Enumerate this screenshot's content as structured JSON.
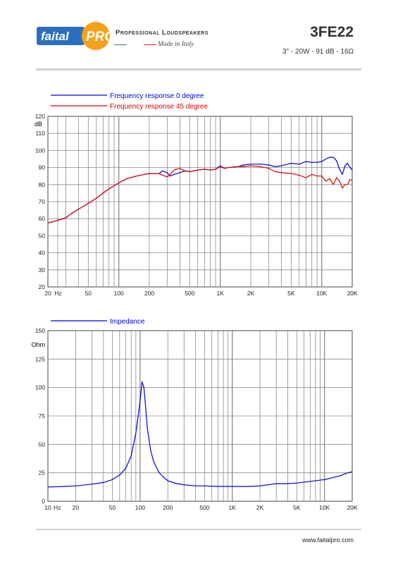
{
  "header": {
    "brand_logo": "faitalPRO",
    "tagline_professional": "Professional Loudspeakers",
    "tagline_made": "Made in Italy",
    "model": "3FE22",
    "spec": "3\" - 20W - 91 dB - 16Ω"
  },
  "footer": {
    "website": "www.faitalpro.com"
  },
  "colors": {
    "blue": "#0000dd",
    "red": "#dd0000",
    "grid": "#8a8a8a"
  },
  "chart_data": [
    {
      "type": "line",
      "title": "",
      "xscale": "log",
      "xlim": [
        20,
        20000
      ],
      "ylim": [
        20,
        120
      ],
      "ylabel": "dB",
      "grid": true,
      "legend_placement": "top-left",
      "x_tick_labels": [
        "20",
        "Hz",
        "50",
        "100",
        "200",
        "500",
        "1K",
        "2K",
        "5K",
        "10K",
        "20K"
      ],
      "y_tick_labels": [
        "120",
        "110",
        "100",
        "90",
        "80",
        "70",
        "60",
        "50",
        "40",
        "30",
        "20"
      ],
      "series": [
        {
          "name": "Frequency response 0 degree",
          "color": "#0000dd",
          "x": [
            20,
            25,
            30,
            35,
            40,
            50,
            60,
            70,
            80,
            100,
            120,
            150,
            180,
            200,
            250,
            270,
            300,
            320,
            350,
            400,
            450,
            500,
            600,
            700,
            800,
            900,
            1000,
            1100,
            1200,
            1500,
            1700,
            2000,
            2500,
            3000,
            3500,
            4000,
            5000,
            6000,
            7000,
            8000,
            9000,
            10000,
            11000,
            12000,
            13000,
            14000,
            15000,
            16000,
            17000,
            18000,
            19000,
            20000
          ],
          "y": [
            57.5,
            59,
            60.5,
            63.5,
            65.5,
            69,
            72,
            75,
            77.5,
            81,
            83.5,
            85,
            86,
            86.5,
            86.5,
            88,
            87,
            85,
            86,
            87,
            88,
            87.5,
            88.5,
            89,
            88.5,
            89,
            91,
            89.5,
            90,
            90.5,
            91.5,
            92,
            92,
            91.5,
            90.5,
            91,
            92.5,
            92,
            93.5,
            93,
            93,
            93.5,
            95,
            96,
            96,
            94,
            89,
            86,
            91,
            92.5,
            90,
            88.5
          ]
        },
        {
          "name": "Frequency response 45 degree",
          "color": "#dd0000",
          "x": [
            20,
            25,
            30,
            35,
            40,
            50,
            60,
            70,
            80,
            100,
            120,
            150,
            180,
            200,
            250,
            270,
            300,
            320,
            350,
            400,
            450,
            500,
            600,
            700,
            800,
            900,
            1000,
            1100,
            1200,
            1500,
            1700,
            2000,
            2500,
            3000,
            3500,
            4000,
            5000,
            6000,
            7000,
            8000,
            9000,
            10000,
            11000,
            12000,
            13000,
            14000,
            15000,
            16000,
            17000,
            18000,
            19000,
            20000
          ],
          "y": [
            57.5,
            59,
            60.5,
            63.5,
            65.5,
            69,
            72,
            75,
            77.5,
            81,
            83.5,
            85,
            86,
            86.5,
            86.5,
            85.5,
            84.5,
            86,
            88.5,
            89.5,
            88,
            87.5,
            88.5,
            89,
            88.5,
            89,
            90.5,
            89.5,
            90,
            90.5,
            90.5,
            91,
            90.5,
            89.5,
            87.5,
            87,
            86.5,
            85.5,
            84,
            86,
            85,
            85,
            82,
            83.5,
            80,
            84,
            82,
            78,
            80,
            80,
            83,
            82.5
          ]
        }
      ]
    },
    {
      "type": "line",
      "title": "",
      "xscale": "log",
      "xlim": [
        10,
        20000
      ],
      "ylim": [
        0,
        150
      ],
      "ylabel": "Ohm",
      "grid": true,
      "legend_placement": "top-left",
      "x_tick_labels": [
        "10",
        "Hz",
        "20",
        "50",
        "100",
        "200",
        "500",
        "1K",
        "2K",
        "5K",
        "10K",
        "20K"
      ],
      "y_tick_labels": [
        "150",
        "125",
        "100",
        "75",
        "50",
        "25",
        "0"
      ],
      "series": [
        {
          "name": "Impedance",
          "color": "#0000dd",
          "x": [
            10,
            15,
            20,
            30,
            40,
            50,
            60,
            70,
            80,
            90,
            100,
            105,
            110,
            115,
            120,
            130,
            140,
            160,
            180,
            200,
            250,
            300,
            400,
            500,
            700,
            1000,
            1500,
            2000,
            3000,
            4000,
            5000,
            7000,
            10000,
            15000,
            17000,
            20000
          ],
          "y": [
            12.5,
            13,
            13.5,
            15,
            16.5,
            19,
            23,
            29,
            40,
            60,
            88,
            105,
            100,
            82,
            64,
            45,
            35,
            25.5,
            21,
            18,
            15.5,
            14.5,
            13.5,
            13.5,
            13,
            13,
            13,
            13.5,
            15.5,
            15.5,
            16,
            17.5,
            19,
            22.5,
            24.5,
            26
          ]
        }
      ]
    }
  ]
}
